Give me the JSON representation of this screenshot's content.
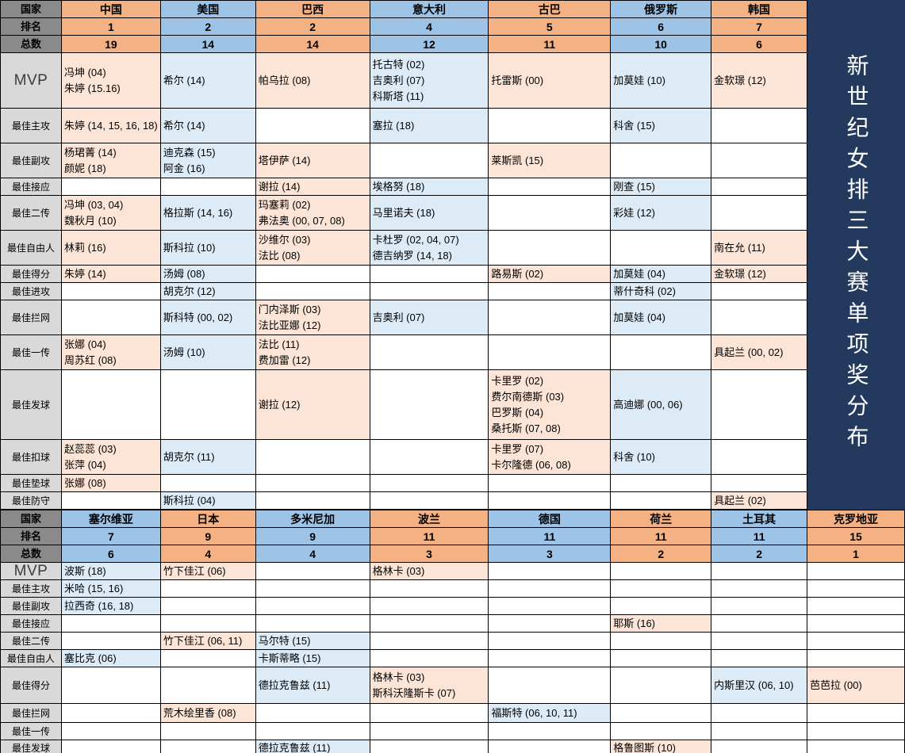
{
  "title": "新世纪女排三大赛单项奖分布",
  "colors": {
    "header_orange": "#f4b183",
    "header_blue": "#9dc3e6",
    "body_orange": "#fce4d6",
    "body_blue": "#ddebf7",
    "label_dark_gray": "#8a8a8a",
    "label_light_gray": "#d9d9d9",
    "title_navy": "#233a5e"
  },
  "labels": {
    "country": "国家",
    "rank": "排名",
    "total": "总数"
  },
  "top": {
    "countries": [
      "中国",
      "美国",
      "巴西",
      "意大利",
      "古巴",
      "俄罗斯",
      "韩国"
    ],
    "ranks": [
      "1",
      "2",
      "2",
      "4",
      "5",
      "6",
      "7"
    ],
    "totals": [
      "19",
      "14",
      "14",
      "12",
      "11",
      "10",
      "6"
    ],
    "award_rows": [
      {
        "label": "MVP",
        "cells": [
          [
            "冯坤 (04)",
            "朱婷 (15.16)"
          ],
          [
            "希尔 (14)"
          ],
          [
            "帕乌拉 (08)"
          ],
          [
            "托古特 (02)",
            "吉奥利 (07)",
            "科斯塔 (11)"
          ],
          [
            "托雷斯 (00)"
          ],
          [
            "加莫娃 (10)"
          ],
          [
            "金软璟 (12)"
          ]
        ]
      },
      {
        "label": "最佳主攻",
        "cells": [
          [
            "朱婷 (14, 15, 16, 18)"
          ],
          [
            "希尔 (14)"
          ],
          [],
          [
            "塞拉 (18)"
          ],
          [],
          [
            "科舍 (15)"
          ],
          []
        ]
      },
      {
        "label": "最佳副攻",
        "cells": [
          [
            "杨珺菁 (14)",
            "颜妮 (18)"
          ],
          [
            "迪克森 (15)",
            "阿金 (16)"
          ],
          [
            "塔伊萨 (14)"
          ],
          [],
          [
            "莱斯凯 (15)"
          ],
          [],
          []
        ]
      },
      {
        "label": "最佳接应",
        "cells": [
          [],
          [],
          [
            "谢拉 (14)"
          ],
          [
            "埃格努 (18)"
          ],
          [],
          [
            "刚查 (15)"
          ],
          []
        ]
      },
      {
        "label": "最佳二传",
        "cells": [
          [
            "冯坤 (03, 04)",
            "魏秋月 (10)"
          ],
          [
            "格拉斯 (14, 16)"
          ],
          [
            "玛塞莉 (02)",
            "弗法奥 (00, 07, 08)"
          ],
          [
            "马里诺夫 (18)"
          ],
          [],
          [
            "彩娃 (12)"
          ],
          []
        ]
      },
      {
        "label": "最佳自由人",
        "cells": [
          [
            "林莉 (16)"
          ],
          [
            "斯科拉 (10)"
          ],
          [
            "沙维尔 (03)",
            "法比 (08)"
          ],
          [
            "卡杜罗 (02, 04, 07)",
            "德吉纳罗 (14, 18)"
          ],
          [],
          [],
          [
            "南在允 (11)"
          ]
        ]
      },
      {
        "label": "最佳得分",
        "cells": [
          [
            "朱婷 (14)"
          ],
          [
            "汤姆 (08)"
          ],
          [],
          [],
          [
            "路易斯 (02)"
          ],
          [
            "加莫娃 (04)"
          ],
          [
            "金软璟 (12)"
          ]
        ]
      },
      {
        "label": "最佳进攻",
        "cells": [
          [],
          [
            "胡克尔 (12)"
          ],
          [],
          [],
          [],
          [
            "蒂什奇科 (02)"
          ],
          []
        ]
      },
      {
        "label": "最佳拦网",
        "cells": [
          [],
          [
            "斯科特 (00, 02)"
          ],
          [
            "门内泽斯 (03)",
            "法比亚娜 (12)"
          ],
          [
            "吉奥利 (07)"
          ],
          [],
          [
            "加莫娃 (04)"
          ],
          []
        ]
      },
      {
        "label": "最佳一传",
        "cells": [
          [
            "张娜 (04)",
            "周苏红 (08)"
          ],
          [
            "汤姆 (10)"
          ],
          [
            "法比 (11)",
            "费加雷 (12)"
          ],
          [],
          [],
          [],
          [
            "具起兰 (00, 02)"
          ]
        ]
      },
      {
        "label": "最佳发球",
        "cells": [
          [],
          [],
          [
            "谢拉 (12)"
          ],
          [],
          [
            "卡里罗 (02)",
            "费尔南德斯 (03)",
            "巴罗斯 (04)",
            "桑托斯 (07, 08)"
          ],
          [
            "高迪娜 (00, 06)"
          ],
          []
        ]
      },
      {
        "label": "最佳扣球",
        "cells": [
          [
            "赵蕊蕊 (03)",
            "张萍 (04)"
          ],
          [
            "胡克尔 (11)"
          ],
          [],
          [],
          [
            "卡里罗 (07)",
            "卡尔隆德 (06, 08)"
          ],
          [
            "科舍 (10)"
          ],
          []
        ]
      },
      {
        "label": "最佳垫球",
        "cells": [
          [
            "张娜 (08)"
          ],
          [],
          [],
          [],
          [],
          [],
          []
        ]
      },
      {
        "label": "最佳防守",
        "cells": [
          [],
          [
            "斯科拉 (04)"
          ],
          [],
          [],
          [],
          [],
          [
            "具起兰 (02)"
          ]
        ]
      }
    ]
  },
  "bottom": {
    "countries": [
      "塞尔维亚",
      "日本",
      "多米尼加",
      "波兰",
      "德国",
      "荷兰",
      "土耳其",
      "克罗地亚"
    ],
    "ranks": [
      "7",
      "9",
      "9",
      "11",
      "11",
      "11",
      "11",
      "15"
    ],
    "totals": [
      "6",
      "4",
      "4",
      "3",
      "3",
      "2",
      "2",
      "1"
    ],
    "award_rows": [
      {
        "label": "MVP",
        "cells": [
          [
            "波斯 (18)"
          ],
          [
            "竹下佳江 (06)"
          ],
          [],
          [
            "格林卡 (03)"
          ],
          [],
          [],
          [],
          []
        ]
      },
      {
        "label": "最佳主攻",
        "cells": [
          [
            "米哈 (15, 16)"
          ],
          [],
          [],
          [],
          [],
          [],
          [],
          []
        ]
      },
      {
        "label": "最佳副攻",
        "cells": [
          [
            "拉西奇 (16, 18)"
          ],
          [],
          [],
          [],
          [],
          [],
          [],
          []
        ]
      },
      {
        "label": "最佳接应",
        "cells": [
          [],
          [],
          [],
          [],
          [],
          [
            "耶斯 (16)"
          ],
          [],
          []
        ]
      },
      {
        "label": "最佳二传",
        "cells": [
          [],
          [
            "竹下佳江 (06, 11)"
          ],
          [
            "马尔特 (15)"
          ],
          [],
          [],
          [],
          [],
          []
        ]
      },
      {
        "label": "最佳自由人",
        "cells": [
          [
            "塞比克 (06)"
          ],
          [],
          [
            "卡斯蒂略 (15)"
          ],
          [],
          [],
          [],
          [],
          []
        ]
      },
      {
        "label": "最佳得分",
        "cells": [
          [],
          [],
          [
            "德拉克鲁兹 (11)"
          ],
          [
            "格林卡 (03)",
            "斯科沃隆斯卡 (07)"
          ],
          [],
          [],
          [
            "内斯里汉 (06, 10)"
          ],
          [
            "芭芭拉 (00)"
          ]
        ]
      },
      {
        "label": "最佳拦网",
        "cells": [
          [],
          [
            "荒木绘里香 (08)"
          ],
          [],
          [],
          [
            "福斯特 (06, 10, 11)"
          ],
          [],
          [],
          []
        ]
      },
      {
        "label": "最佳一传",
        "cells": [
          [],
          [],
          [],
          [],
          [],
          [],
          [],
          []
        ]
      },
      {
        "label": "最佳发球",
        "cells": [
          [],
          [],
          [
            "德拉克鲁兹 (11)"
          ],
          [],
          [],
          [
            "格鲁图斯 (10)"
          ],
          [],
          []
        ]
      }
    ]
  }
}
